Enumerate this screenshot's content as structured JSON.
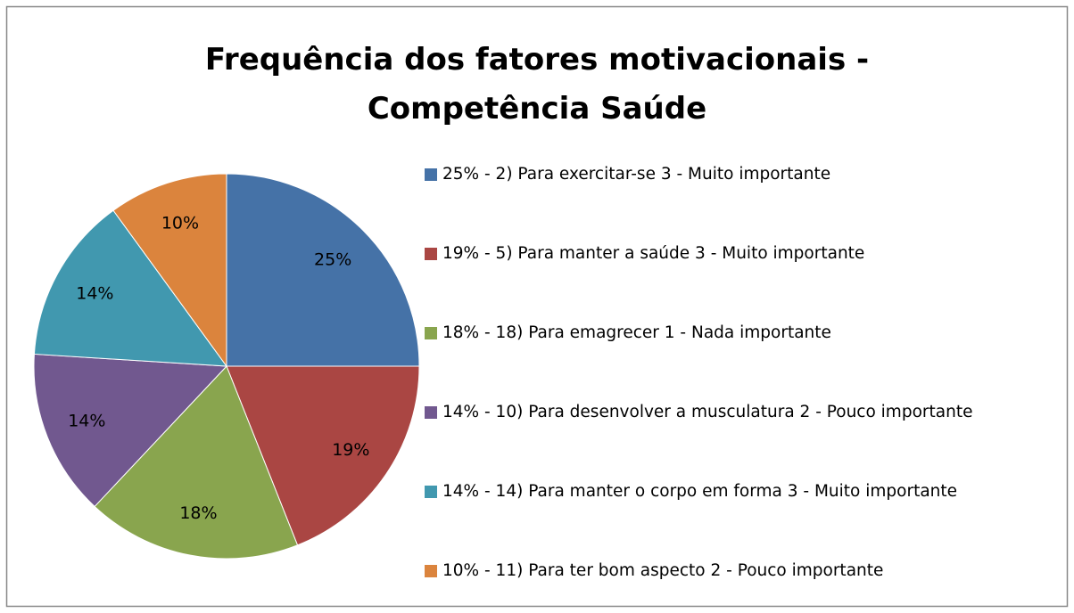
{
  "chart_data": {
    "type": "pie",
    "title": "Frequência dos fatores motivacionais - Competência Saúde",
    "series": [
      {
        "name": "25% - 2) Para exercitar-se 3 - Muito importante",
        "color": "#4572a7"
      },
      {
        "name": "19% - 5) Para manter a saúde 3 - Muito importante",
        "color": "#aa4643"
      },
      {
        "name": "18% - 18) Para emagrecer 1 - Nada importante",
        "color": "#89a54e"
      },
      {
        "name": "14% - 10) Para desenvolver a musculatura 2 - Pouco importante",
        "color": "#71588f"
      },
      {
        "name": "14% - 14) Para manter o corpo em forma 3 - Muito importante",
        "color": "#4198af"
      },
      {
        "name": "10% - 11) Para ter bom aspecto 2 - Pouco importante",
        "color": "#db843d"
      }
    ],
    "values": [
      25,
      19,
      18,
      14,
      14,
      10
    ],
    "value_labels": [
      "25%",
      "19%",
      "18%",
      "14%",
      "14%",
      "10%"
    ],
    "legend": "right"
  }
}
